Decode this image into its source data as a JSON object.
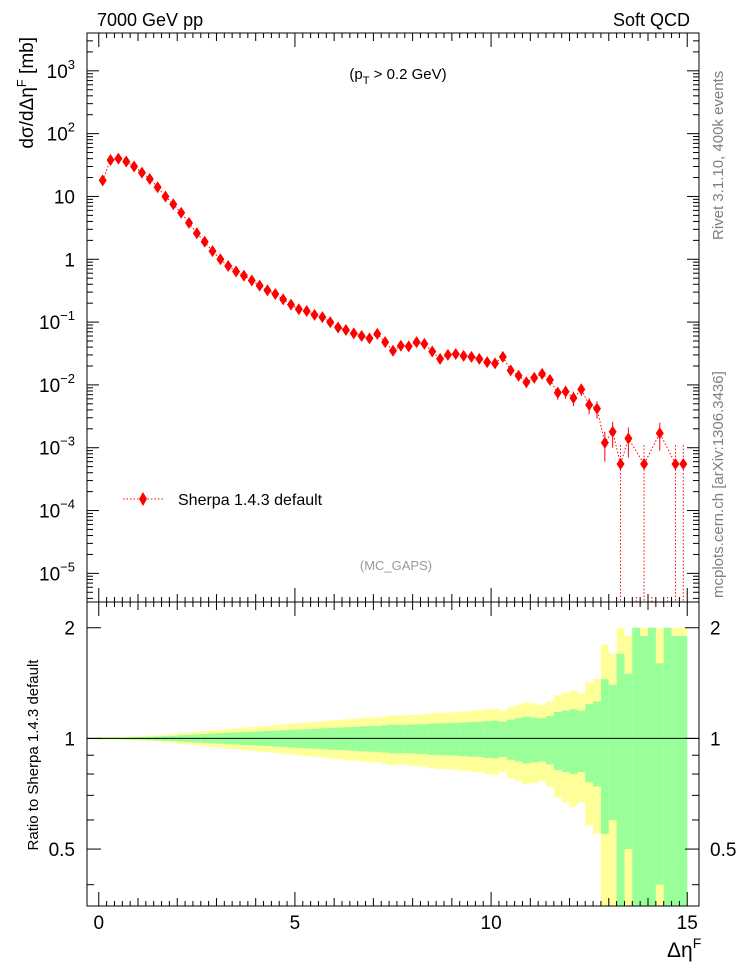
{
  "header": {
    "left_label": "7000 GeV pp",
    "right_label": "Soft QCD"
  },
  "side_labels": {
    "rivet": "Rivet 3.1.10,  400k events",
    "mcplots": "mcplots.cern.ch [arXiv:1306.3436]"
  },
  "chart_data": [
    {
      "type": "scatter",
      "name": "main",
      "title_cut": {
        "prefix": "(p",
        "sub": "T",
        "suffix": " > 0.2 GeV)"
      },
      "analysis_tag": "(MC_GAPS)",
      "ylabel": {
        "main": "dσ/dΔη",
        "sup": "F",
        "unit": " [mb]"
      },
      "yscale": "log",
      "ylim": [
        3.5e-06,
        4000
      ],
      "xlim": [
        -0.3,
        15.3
      ],
      "ytick_values": [
        1e-05,
        0.0001,
        0.001,
        0.01,
        0.1,
        1,
        10,
        100,
        1000
      ],
      "ytick_labels": [
        {
          "base": "10",
          "exp": "−5"
        },
        {
          "base": "10",
          "exp": "−4"
        },
        {
          "base": "10",
          "exp": "−3"
        },
        {
          "base": "10",
          "exp": "−2"
        },
        {
          "base": "10",
          "exp": "−1"
        },
        {
          "base": "1",
          "exp": ""
        },
        {
          "base": "10",
          "exp": ""
        },
        {
          "base": "10",
          "exp": "2"
        },
        {
          "base": "10",
          "exp": "3"
        }
      ],
      "legend": {
        "label": "Sherpa 1.4.3 default",
        "location": "lower-left",
        "color": "#ff0000"
      },
      "series": [
        {
          "name": "Sherpa 1.4.3 default",
          "color": "#ff0000",
          "x": [
            0.1,
            0.3,
            0.5,
            0.7,
            0.9,
            1.1,
            1.3,
            1.5,
            1.7,
            1.9,
            2.1,
            2.3,
            2.5,
            2.7,
            2.9,
            3.1,
            3.3,
            3.5,
            3.7,
            3.9,
            4.1,
            4.3,
            4.5,
            4.7,
            4.9,
            5.1,
            5.3,
            5.5,
            5.7,
            5.9,
            6.1,
            6.3,
            6.5,
            6.7,
            6.9,
            7.1,
            7.3,
            7.5,
            7.7,
            7.9,
            8.1,
            8.3,
            8.5,
            8.7,
            8.9,
            9.1,
            9.3,
            9.5,
            9.7,
            9.9,
            10.1,
            10.3,
            10.5,
            10.7,
            10.9,
            11.1,
            11.3,
            11.5,
            11.7,
            11.9,
            12.1,
            12.3,
            12.5,
            12.7,
            12.9,
            13.1,
            13.3,
            13.5,
            13.7,
            13.9,
            14.1,
            14.3,
            14.5,
            14.7,
            14.9
          ],
          "y": [
            18,
            38,
            40,
            36,
            30,
            24,
            19,
            14,
            10,
            7.5,
            5.5,
            3.8,
            2.6,
            1.9,
            1.35,
            1.0,
            0.78,
            0.64,
            0.55,
            0.46,
            0.38,
            0.32,
            0.28,
            0.23,
            0.19,
            0.16,
            0.15,
            0.13,
            0.12,
            0.1,
            0.082,
            0.075,
            0.066,
            0.06,
            0.055,
            0.065,
            0.048,
            0.035,
            0.042,
            0.041,
            0.048,
            0.045,
            0.034,
            0.026,
            0.03,
            0.031,
            0.029,
            0.028,
            0.026,
            0.023,
            0.022,
            0.028,
            0.017,
            0.014,
            0.011,
            0.013,
            0.015,
            0.012,
            0.0075,
            0.0078,
            0.0062,
            0.0085,
            0.0048,
            0.0042,
            0.0012,
            0.0018,
            0.00055,
            0.0014,
            null,
            0.00055,
            null,
            0.0017,
            null,
            0.00055,
            0.00055
          ],
          "yerr": [
            0.6,
            1,
            1,
            1,
            0.8,
            0.7,
            0.5,
            0.4,
            0.3,
            0.25,
            0.2,
            0.15,
            0.1,
            0.08,
            0.06,
            0.05,
            0.04,
            0.035,
            0.03,
            0.028,
            0.024,
            0.02,
            0.018,
            0.016,
            0.014,
            0.012,
            0.011,
            0.01,
            0.009,
            0.008,
            0.007,
            0.0065,
            0.006,
            0.0055,
            0.005,
            0.0055,
            0.0048,
            0.004,
            0.0045,
            0.0045,
            0.005,
            0.0048,
            0.004,
            0.0035,
            0.0038,
            0.0039,
            0.0037,
            0.0036,
            0.0034,
            0.0032,
            0.0031,
            0.0036,
            0.0027,
            0.0024,
            0.0021,
            0.0023,
            0.0025,
            0.0022,
            0.0017,
            0.0018,
            0.0016,
            0.0019,
            0.0014,
            0.0013,
            0.0006,
            0.0008,
            0.00055,
            0.0007,
            0,
            0.00055,
            0,
            0.0008,
            0,
            0.00055,
            0.00055
          ]
        }
      ]
    },
    {
      "type": "area",
      "name": "ratio",
      "ylabel": "Ratio to Sherpa 1.4.3 default",
      "xlabel": {
        "main": "Δη",
        "sup": "F"
      },
      "yscale": "log",
      "ylim": [
        0.35,
        2.35
      ],
      "xlim": [
        -0.3,
        15.3
      ],
      "xtick_values": [
        0,
        5,
        10,
        15
      ],
      "xtick_labels": [
        "0",
        "5",
        "10",
        "15"
      ],
      "ytick_values": [
        0.5,
        1,
        2
      ],
      "ytick_labels": [
        "0.5",
        "1",
        "2"
      ],
      "reference_line": 1,
      "band_colors": {
        "inner": "#99ff99",
        "outer": "#ffff99"
      },
      "bins_x": [
        0,
        0.2,
        0.4,
        0.6,
        0.8,
        1.0,
        1.2,
        1.4,
        1.6,
        1.8,
        2.0,
        2.2,
        2.4,
        2.6,
        2.8,
        3.0,
        3.2,
        3.4,
        3.6,
        3.8,
        4.0,
        4.2,
        4.4,
        4.6,
        4.8,
        5.0,
        5.2,
        5.4,
        5.6,
        5.8,
        6.0,
        6.2,
        6.4,
        6.6,
        6.8,
        7.0,
        7.2,
        7.4,
        7.6,
        7.8,
        8.0,
        8.2,
        8.4,
        8.6,
        8.8,
        9.0,
        9.2,
        9.4,
        9.6,
        9.8,
        10.0,
        10.2,
        10.4,
        10.6,
        10.8,
        11.0,
        11.2,
        11.4,
        11.6,
        11.8,
        12.0,
        12.2,
        12.4,
        12.6,
        12.8,
        13.0,
        13.2,
        13.4,
        13.6,
        13.8,
        14.0,
        14.2,
        14.4,
        14.6,
        14.8,
        15.0
      ],
      "inner_band": [
        0.005,
        0.005,
        0.005,
        0.006,
        0.007,
        0.008,
        0.01,
        0.012,
        0.014,
        0.016,
        0.02,
        0.022,
        0.025,
        0.028,
        0.03,
        0.033,
        0.036,
        0.038,
        0.04,
        0.042,
        0.045,
        0.047,
        0.05,
        0.052,
        0.055,
        0.057,
        0.06,
        0.062,
        0.065,
        0.068,
        0.07,
        0.072,
        0.075,
        0.078,
        0.08,
        0.08,
        0.085,
        0.09,
        0.088,
        0.09,
        0.092,
        0.093,
        0.098,
        0.1,
        0.1,
        0.102,
        0.105,
        0.108,
        0.11,
        0.115,
        0.118,
        0.11,
        0.125,
        0.135,
        0.145,
        0.14,
        0.135,
        0.15,
        0.18,
        0.19,
        0.2,
        0.19,
        0.24,
        0.26,
        0.45,
        0.4,
        0.7,
        0.5,
        1.0,
        0.9,
        1.0,
        0.6,
        1.0,
        0.9,
        0.9
      ],
      "outer_band": [
        0.008,
        0.008,
        0.008,
        0.01,
        0.012,
        0.014,
        0.017,
        0.02,
        0.024,
        0.028,
        0.034,
        0.038,
        0.043,
        0.048,
        0.052,
        0.057,
        0.062,
        0.066,
        0.07,
        0.073,
        0.078,
        0.082,
        0.087,
        0.091,
        0.096,
        0.1,
        0.105,
        0.108,
        0.113,
        0.118,
        0.122,
        0.126,
        0.131,
        0.136,
        0.14,
        0.14,
        0.148,
        0.157,
        0.153,
        0.157,
        0.16,
        0.163,
        0.17,
        0.175,
        0.175,
        0.178,
        0.183,
        0.188,
        0.192,
        0.2,
        0.205,
        0.19,
        0.22,
        0.235,
        0.25,
        0.245,
        0.235,
        0.26,
        0.31,
        0.33,
        0.35,
        0.33,
        0.42,
        0.45,
        0.8,
        0.7,
        1.0,
        0.9,
        1.0,
        1.0,
        1.0,
        1.0,
        1.0,
        1.0,
        1.0
      ]
    }
  ]
}
